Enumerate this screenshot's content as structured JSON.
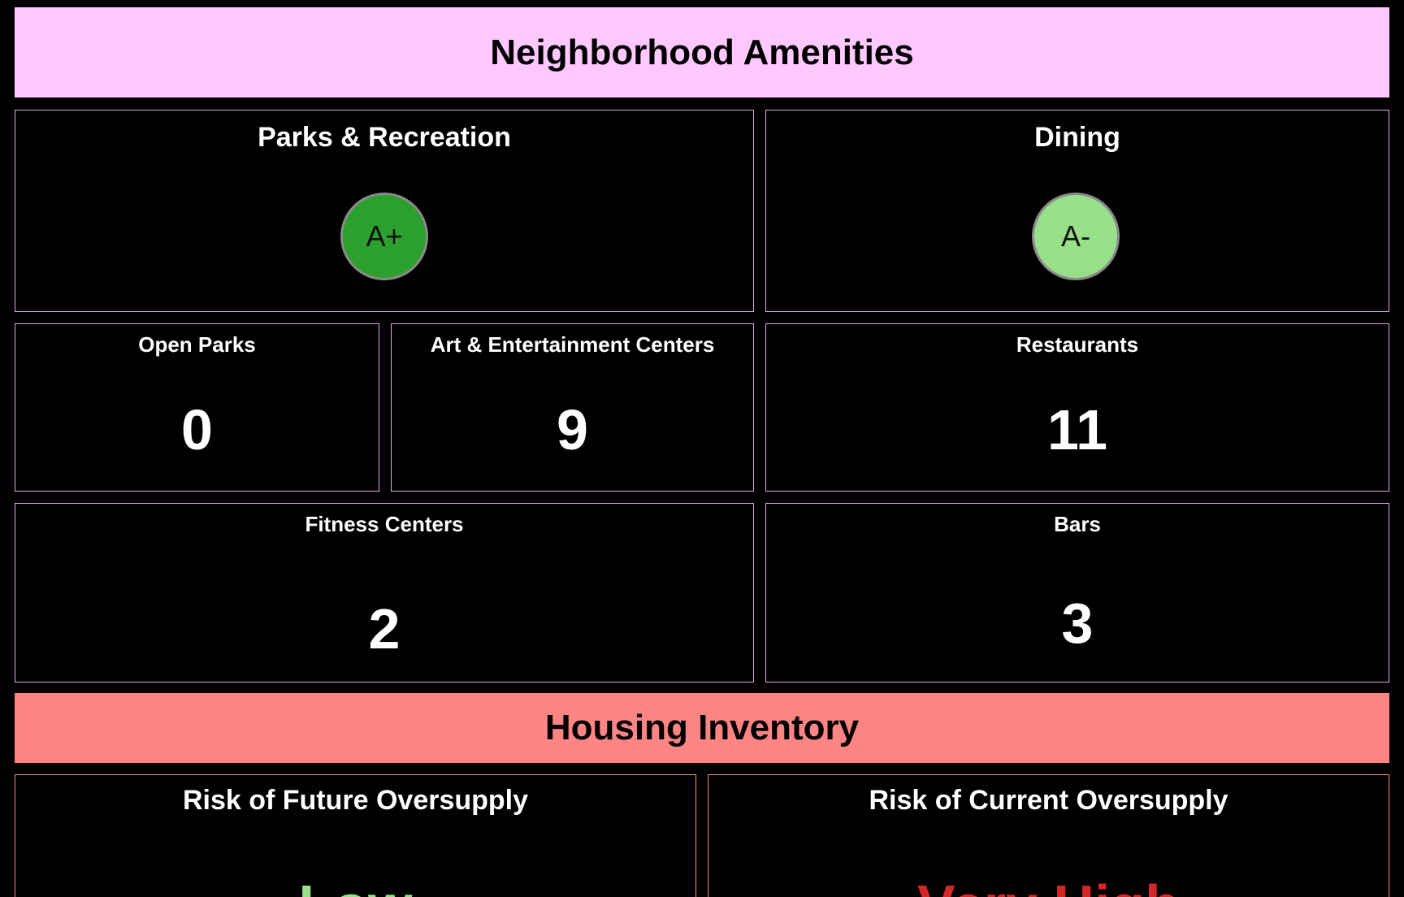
{
  "amenities": {
    "title": "Neighborhood Amenities",
    "header_color": "#ffc8ff",
    "parks_recreation": {
      "title": "Parks & Recreation",
      "grade": "A+",
      "grade_color": "#2ca02c"
    },
    "dining": {
      "title": "Dining",
      "grade": "A-",
      "grade_color": "#98df8a"
    },
    "open_parks": {
      "label": "Open Parks",
      "value": "0"
    },
    "art_entertainment": {
      "label": "Art & Entertainment Centers",
      "value": "9"
    },
    "restaurants": {
      "label": "Restaurants",
      "value": "11"
    },
    "fitness_centers": {
      "label": "Fitness Centers",
      "value": "2"
    },
    "bars": {
      "label": "Bars",
      "value": "3"
    }
  },
  "housing": {
    "title": "Housing Inventory",
    "header_color": "#ff8585",
    "future_oversupply": {
      "title": "Risk of Future Oversupply",
      "value": "Low",
      "value_color": "#98df8a"
    },
    "current_oversupply": {
      "title": "Risk of Current Oversupply",
      "value": "Very High",
      "value_color": "#d62728"
    }
  }
}
